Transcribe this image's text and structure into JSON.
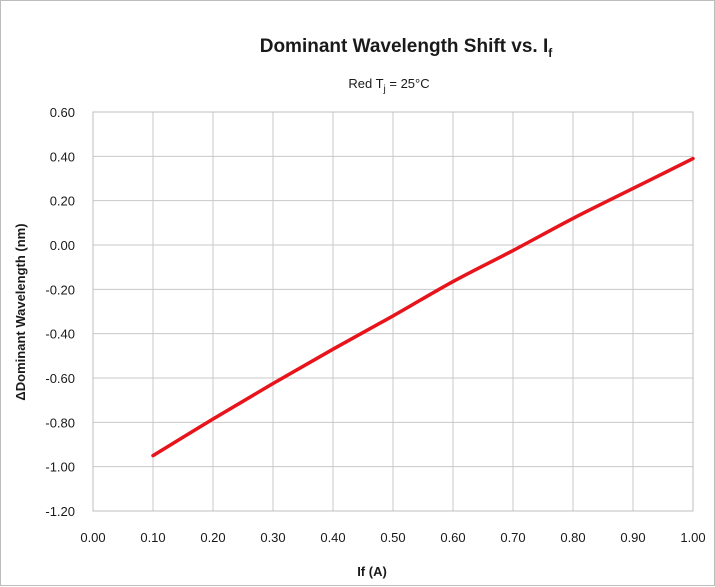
{
  "chart_data": {
    "type": "line",
    "title": "Dominant  Wavelength Shift vs. I",
    "title_subscript": "f",
    "subtitle_prefix": "Red  T",
    "subtitle_subscript": "j",
    "subtitle_suffix": " = 25°C",
    "xlabel": "If (A)",
    "ylabel": "ΔDominant Wavelength (nm)",
    "xlim": [
      0.0,
      1.0
    ],
    "ylim": [
      -1.2,
      0.6
    ],
    "x_ticks": [
      "0.00",
      "0.10",
      "0.20",
      "0.30",
      "0.40",
      "0.50",
      "0.60",
      "0.70",
      "0.80",
      "0.90",
      "1.00"
    ],
    "y_ticks": [
      "0.60",
      "0.40",
      "0.20",
      "0.00",
      "-0.20",
      "-0.40",
      "-0.60",
      "-0.80",
      "-1.00",
      "-1.20"
    ],
    "grid": true,
    "series": [
      {
        "color": "#e8141b",
        "x": [
          0.1,
          0.2,
          0.3,
          0.4,
          0.5,
          0.6,
          0.7,
          0.8,
          0.9,
          1.0
        ],
        "y": [
          -0.95,
          -0.785,
          -0.625,
          -0.47,
          -0.32,
          -0.165,
          -0.025,
          0.12,
          0.255,
          0.39
        ]
      }
    ]
  }
}
